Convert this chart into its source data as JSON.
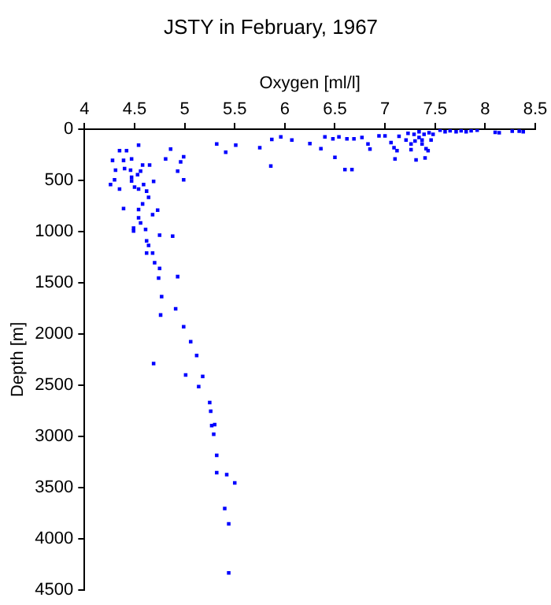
{
  "chart_data": {
    "type": "scatter",
    "title": "JSTY in February, 1967",
    "xlabel": "Oxygen [ml/l]",
    "ylabel": "Depth [m]",
    "xlim": [
      4,
      8.5
    ],
    "xticks": [
      4,
      4.5,
      5,
      5.5,
      6,
      6.5,
      7,
      7.5,
      8,
      8.5
    ],
    "ylim": [
      4500,
      0
    ],
    "yticks": [
      0,
      500,
      1000,
      1500,
      2000,
      2500,
      3000,
      3500,
      4000,
      4500
    ],
    "grid": false,
    "legend": false,
    "marker": "square",
    "series": [
      {
        "color": "#0000ff",
        "x": [
          4.54,
          4.35,
          4.42,
          4.86,
          4.28,
          4.39,
          4.47,
          4.81,
          4.99,
          4.96,
          4.31,
          4.4,
          4.46,
          4.56,
          4.58,
          4.65,
          4.93,
          4.99,
          4.3,
          4.26,
          4.35,
          4.47,
          4.47,
          4.53,
          4.5,
          4.54,
          4.59,
          4.62,
          4.69,
          4.64,
          4.58,
          4.39,
          4.54,
          4.73,
          4.54,
          4.68,
          4.56,
          4.49,
          4.49,
          4.61,
          4.75,
          4.88,
          4.62,
          4.64,
          4.62,
          4.68,
          4.7,
          4.75,
          4.93,
          4.74,
          4.77,
          4.91,
          4.76,
          4.99,
          5.06,
          5.12,
          4.69,
          5.01,
          5.18,
          5.14,
          5.25,
          5.26,
          5.3,
          5.27,
          5.29,
          5.32,
          5.32,
          5.42,
          5.5,
          5.4,
          5.44,
          5.44,
          5.32,
          5.41,
          5.51,
          5.75,
          5.87,
          5.96,
          6.07,
          5.86,
          6.25,
          6.36,
          6.4,
          6.48,
          6.54,
          6.62,
          6.69,
          6.77,
          6.83,
          6.85,
          6.5,
          6.6,
          6.67,
          6.94,
          7.0,
          7.06,
          7.09,
          7.1,
          7.12,
          7.14,
          7.26,
          7.31,
          7.34,
          7.37,
          7.41,
          7.43,
          7.4,
          7.23,
          7.29,
          7.34,
          7.39,
          7.44,
          7.48,
          7.21,
          7.3,
          7.37,
          7.46,
          7.26,
          7.55,
          7.6,
          7.65,
          7.71,
          7.76,
          7.81,
          7.86,
          7.92,
          8.1,
          8.14,
          8.27,
          8.34,
          8.38
        ],
        "values": [
          155,
          210,
          210,
          195,
          305,
          305,
          290,
          290,
          270,
          320,
          400,
          385,
          400,
          410,
          350,
          350,
          410,
          495,
          495,
          540,
          585,
          470,
          505,
          445,
          565,
          585,
          540,
          605,
          510,
          665,
          730,
          775,
          785,
          790,
          865,
          835,
          915,
          965,
          995,
          980,
          1035,
          1045,
          1090,
          1135,
          1210,
          1210,
          1305,
          1360,
          1440,
          1455,
          1635,
          1755,
          1815,
          1930,
          2075,
          2210,
          2290,
          2400,
          2415,
          2515,
          2670,
          2755,
          2885,
          2895,
          2980,
          3185,
          3355,
          3375,
          3455,
          3705,
          3855,
          4335,
          145,
          225,
          155,
          180,
          100,
          75,
          105,
          360,
          140,
          190,
          75,
          95,
          75,
          95,
          95,
          80,
          145,
          195,
          275,
          395,
          395,
          65,
          65,
          130,
          180,
          290,
          210,
          70,
          200,
          300,
          80,
          145,
          190,
          210,
          280,
          40,
          50,
          25,
          50,
          35,
          50,
          105,
          115,
          105,
          105,
          145,
          10,
          25,
          15,
          25,
          15,
          25,
          15,
          10,
          30,
          35,
          20,
          20,
          25
        ]
      }
    ]
  }
}
